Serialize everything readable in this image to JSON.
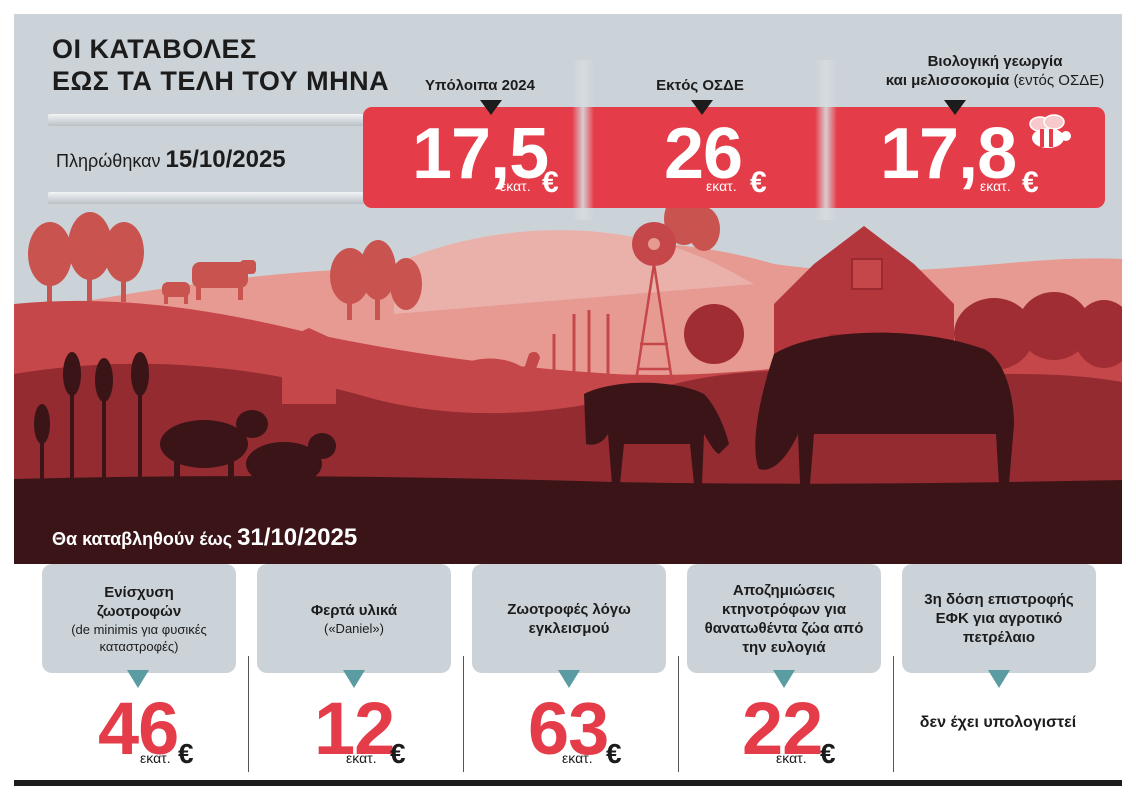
{
  "header": {
    "title_line1": "ΟΙ ΚΑΤΑΒΟΛΕΣ",
    "title_line2": "ΕΩΣ ΤΑ ΤΕΛΗ ΤΟΥ ΜΗΝΑ",
    "paid_prefix": "Πληρώθηκαν",
    "paid_date": "15/10/2025"
  },
  "top_items": [
    {
      "label_line1": "Υπόλοιπα 2024",
      "label_line2": "",
      "label_note": "",
      "value": "17,5",
      "unit": "εκατ.",
      "currency": "€"
    },
    {
      "label_line1": "Εκτός ΟΣΔΕ",
      "label_line2": "",
      "label_note": "",
      "value": "26",
      "unit": "εκατ.",
      "currency": "€"
    },
    {
      "label_line1": "Βιολογική γεωργία",
      "label_line2": "και μελισσοκομία",
      "label_note": "(εντός ΟΣΔΕ)",
      "value": "17,8",
      "unit": "εκατ.",
      "currency": "€"
    }
  ],
  "upcoming": {
    "prefix": "Θα καταβληθούν έως",
    "date": "31/10/2025",
    "items": [
      {
        "title": "Ενίσχυση ζωοτροφών",
        "subtitle": "(de minimis για φυσικές καταστροφές)",
        "value": "46",
        "unit": "εκατ.",
        "currency": "€"
      },
      {
        "title": "Φερτά υλικά",
        "subtitle": "(«Daniel»)",
        "value": "12",
        "unit": "εκατ.",
        "currency": "€"
      },
      {
        "title": "Ζωοτροφές λόγω εγκλεισμού",
        "subtitle": "",
        "value": "63",
        "unit": "εκατ.",
        "currency": "€"
      },
      {
        "title": "Αποζημιώσεις κτηνοτρόφων για θανατωθέντα ζώα από την ευλογιά",
        "subtitle": "",
        "value": "22",
        "unit": "εκατ.",
        "currency": "€"
      },
      {
        "title": "3η δόση επιστροφής ΕΦΚ για αγροτικό πετρέλαιο",
        "subtitle": "",
        "not_available": "δεν έχει υπολογιστεί"
      }
    ]
  },
  "colors": {
    "accent_red": "#e53c49",
    "sky": "#ccd3d8",
    "ground": "#3a1416",
    "teal": "#5a9ca2"
  },
  "icons": [
    "bee-icon",
    "down-triangle-icon",
    "euro-icon"
  ]
}
